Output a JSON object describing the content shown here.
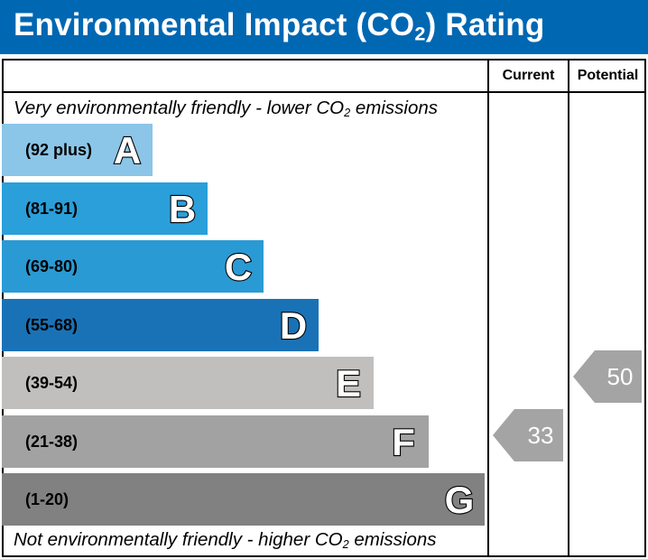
{
  "title": {
    "prefix": "Environmental Impact (CO",
    "sub": "2",
    "suffix": ") Rating"
  },
  "columns": {
    "current": "Current",
    "potential": "Potential"
  },
  "top_note": {
    "prefix": "Very environmentally friendly - lower CO",
    "sub": "2",
    "suffix": " emissions"
  },
  "bottom_note": {
    "prefix": "Not environmentally friendly - higher CO",
    "sub": "2",
    "suffix": " emissions"
  },
  "colors": {
    "header": "#0067b2",
    "arrow": "#a4a4a4"
  },
  "chart_data": {
    "type": "bar",
    "bands": [
      {
        "letter": "A",
        "range": "(92 plus)",
        "color": "#8bc5e8",
        "level": 0.3
      },
      {
        "letter": "B",
        "range": "(81-91)",
        "color": "#2a9fd9",
        "level": 0.41
      },
      {
        "letter": "C",
        "range": "(69-80)",
        "color": "#2a9ad4",
        "level": 0.52
      },
      {
        "letter": "D",
        "range": "(55-68)",
        "color": "#1a72b6",
        "level": 0.63
      },
      {
        "letter": "E",
        "range": "(39-54)",
        "color": "#c0bfbd",
        "level": 0.74
      },
      {
        "letter": "F",
        "range": "(21-38)",
        "color": "#a2a2a2",
        "level": 0.85
      },
      {
        "letter": "G",
        "range": "(1-20)",
        "color": "#818181",
        "level": 0.96
      }
    ],
    "current": {
      "value": 33,
      "band": "F"
    },
    "potential": {
      "value": 50,
      "band": "E"
    }
  }
}
